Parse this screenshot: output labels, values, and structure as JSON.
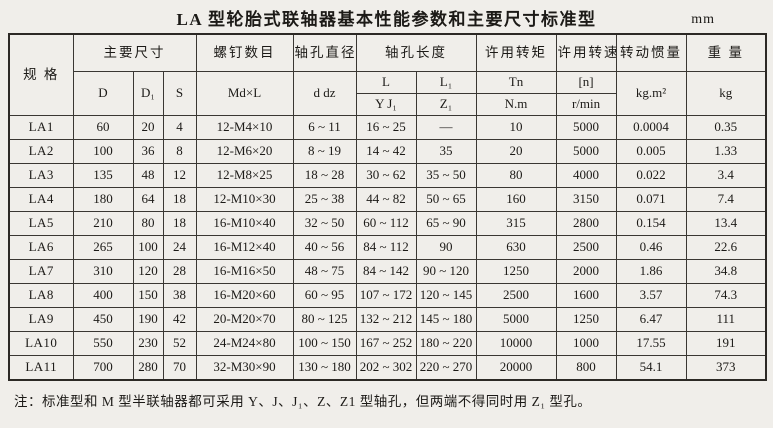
{
  "page": {
    "title": "LA 型轮胎式联轴器基本性能参数和主要尺寸标准型",
    "unit": "mm",
    "note": "注：标准型和 M 型半联轴器都可采用 Y、J、J₁、Z、Z1 型轴孔，但两端不得同时用 Z₁ 型孔。"
  },
  "colors": {
    "background": "#f0eeea",
    "border": "#3a3733",
    "text": "#1c1a17"
  },
  "table": {
    "header": {
      "spec": "规  格",
      "main_dims": "主要尺寸",
      "d": "D",
      "d1": "D₁",
      "s": "S",
      "screws": "螺钉数目",
      "screws_sub": "Md×L",
      "bore_dia": "轴孔直径",
      "bore_dia_sub": "d dz",
      "bore_len": "轴孔长度",
      "l": "L",
      "l_sub": "Y J₁",
      "l1": "L₁",
      "l1_sub": "Z₁",
      "torque": "许用转矩",
      "torque_sym": "Tn",
      "torque_unit": "N.m",
      "speed": "许用转速",
      "speed_sym": "[n]",
      "speed_unit": "r/min",
      "inertia": "转动惯量",
      "inertia_unit": "kg.m²",
      "weight": "重 量",
      "weight_unit": "kg"
    },
    "rows": [
      [
        "LA1",
        "60",
        "20",
        "4",
        "12-M4×10",
        "6 ~ 11",
        "16 ~ 25",
        "—",
        "10",
        "5000",
        "0.0004",
        "0.35"
      ],
      [
        "LA2",
        "100",
        "36",
        "8",
        "12-M6×20",
        "8 ~ 19",
        "14 ~ 42",
        "35",
        "20",
        "5000",
        "0.005",
        "1.33"
      ],
      [
        "LA3",
        "135",
        "48",
        "12",
        "12-M8×25",
        "18 ~ 28",
        "30 ~ 62",
        "35 ~ 50",
        "80",
        "4000",
        "0.022",
        "3.4"
      ],
      [
        "LA4",
        "180",
        "64",
        "18",
        "12-M10×30",
        "25 ~ 38",
        "44 ~ 82",
        "50 ~ 65",
        "160",
        "3150",
        "0.071",
        "7.4"
      ],
      [
        "LA5",
        "210",
        "80",
        "18",
        "16-M10×40",
        "32 ~ 50",
        "60 ~ 112",
        "65 ~ 90",
        "315",
        "2800",
        "0.154",
        "13.4"
      ],
      [
        "LA6",
        "265",
        "100",
        "24",
        "16-M12×40",
        "40 ~ 56",
        "84 ~ 112",
        "90",
        "630",
        "2500",
        "0.46",
        "22.6"
      ],
      [
        "LA7",
        "310",
        "120",
        "28",
        "16-M16×50",
        "48 ~ 75",
        "84 ~ 142",
        "90 ~ 120",
        "1250",
        "2000",
        "1.86",
        "34.8"
      ],
      [
        "LA8",
        "400",
        "150",
        "38",
        "16-M20×60",
        "60 ~ 95",
        "107 ~ 172",
        "120 ~ 145",
        "2500",
        "1600",
        "3.57",
        "74.3"
      ],
      [
        "LA9",
        "450",
        "190",
        "42",
        "20-M20×70",
        "80 ~ 125",
        "132 ~ 212",
        "145 ~ 180",
        "5000",
        "1250",
        "6.47",
        "111"
      ],
      [
        "LA10",
        "550",
        "230",
        "52",
        "24-M24×80",
        "100 ~ 150",
        "167 ~ 252",
        "180 ~ 220",
        "10000",
        "1000",
        "17.55",
        "191"
      ],
      [
        "LA11",
        "700",
        "280",
        "70",
        "32-M30×90",
        "130 ~ 180",
        "202 ~ 302",
        "220 ~ 270",
        "20000",
        "800",
        "54.1",
        "373"
      ]
    ]
  }
}
